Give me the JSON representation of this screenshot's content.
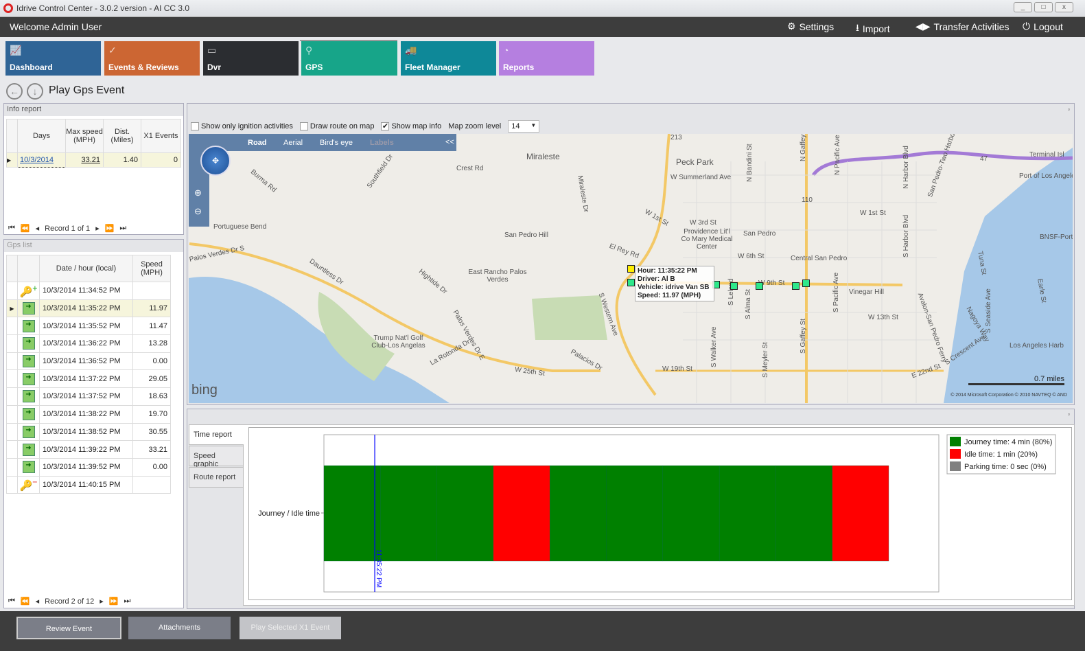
{
  "window": {
    "title": "Idrive Control Center - 3.0.2 version - AI CC 3.0",
    "min": "_",
    "max": "□",
    "close": "x"
  },
  "header": {
    "welcome": "Welcome Admin User",
    "settings": "Settings",
    "import": "Import",
    "transfer": "Transfer Activities",
    "logout": "Logout"
  },
  "tiles": [
    {
      "label": "Dashboard",
      "color": "#2f6496"
    },
    {
      "label": "Events & Reviews",
      "color": "#cc6633"
    },
    {
      "label": "Dvr",
      "color": "#2b2d31"
    },
    {
      "label": "GPS",
      "color": "#17a589"
    },
    {
      "label": "Fleet Manager",
      "color": "#0e8898"
    },
    {
      "label": "Reports",
      "color": "#b57fe0"
    }
  ],
  "page": {
    "title": "Play Gps Event"
  },
  "info_report": {
    "title": "Info report",
    "columns": [
      "Days",
      "Max speed (MPH)",
      "Dist. (Miles)",
      "X1 Events"
    ],
    "row": {
      "days": "10/3/2014",
      "max_speed": "33.21",
      "dist": "1.40",
      "x1": "0"
    },
    "record": "Record 1 of 1"
  },
  "gps_list": {
    "title": "Gps list",
    "columns": [
      "Date / hour (local)",
      "Speed (MPH)"
    ],
    "record": "Record 2 of 12",
    "selected_index": 1,
    "rows": [
      {
        "time": "10/3/2014 11:34:52 PM",
        "speed": "",
        "icon": "start-key"
      },
      {
        "time": "10/3/2014 11:35:22 PM",
        "speed": "11.97",
        "icon": "map"
      },
      {
        "time": "10/3/2014 11:35:52 PM",
        "speed": "11.47",
        "icon": "map"
      },
      {
        "time": "10/3/2014 11:36:22 PM",
        "speed": "13.28",
        "icon": "map"
      },
      {
        "time": "10/3/2014 11:36:52 PM",
        "speed": "0.00",
        "icon": "map"
      },
      {
        "time": "10/3/2014 11:37:22 PM",
        "speed": "29.05",
        "icon": "map"
      },
      {
        "time": "10/3/2014 11:37:52 PM",
        "speed": "18.63",
        "icon": "map"
      },
      {
        "time": "10/3/2014 11:38:22 PM",
        "speed": "19.70",
        "icon": "map"
      },
      {
        "time": "10/3/2014 11:38:52 PM",
        "speed": "30.55",
        "icon": "map"
      },
      {
        "time": "10/3/2014 11:39:22 PM",
        "speed": "33.21",
        "icon": "map"
      },
      {
        "time": "10/3/2014 11:39:52 PM",
        "speed": "0.00",
        "icon": "map"
      },
      {
        "time": "10/3/2014 11:40:15 PM",
        "speed": "",
        "icon": "end-key"
      }
    ]
  },
  "map_toolbar": {
    "ignition": "Show only ignition activities",
    "ignition_checked": false,
    "route": "Draw route on map",
    "route_checked": false,
    "info": "Show map info",
    "info_checked": true,
    "zoom_label": "Map zoom level",
    "zoom_value": "14"
  },
  "map": {
    "modes": [
      "Road",
      "Aerial",
      "Bird's eye",
      "Labels"
    ],
    "collapse": "<<",
    "brand": "bing",
    "scale": "0.7 miles",
    "copyright": "© 2014 Microsoft Corporation   © 2010 NAVTEQ   © AND",
    "labels": [
      "Miraleste",
      "Peck Park",
      "W Summerland Ave",
      "Crest Rd",
      "Burma Rd",
      "Southfield Dr",
      "Portuguese Bend",
      "Palos Verdes Dr S",
      "San Pedro Hill",
      "Dauntless Dr",
      "Hightide Dr",
      "East Rancho Palos Verdes",
      "W 1st St",
      "El Rey Rd",
      "W 3rd St",
      "Providence Lit'l Co Mary Medical Center",
      "W 6th St",
      "San Pedro",
      "Central San Pedro",
      "Vinegar Hill",
      "W 13th St",
      "Trump Nat'l Golf Club-Los Angelas",
      "W 25th St",
      "Palacios Dr",
      "W 19th St",
      "S Western Ave",
      "S Gaffey St",
      "N Gaffey Pl",
      "N Pacific Ave",
      "S Pacific Ave",
      "N Harbor Blvd",
      "S Harbor Blvd",
      "Port of Los Angeles",
      "BNSF-Port",
      "Terminal Isl",
      "Los Angeles Harb",
      "E 22nd St",
      "S Crescent Ave",
      "W 1st St",
      "La Rotonda Dr",
      "Palos Verdes Dr E",
      "Miraleste Dr",
      "N Bandini St",
      "Tuna St",
      "Earle St",
      "S Seaside Ave",
      "Nagoya Way",
      "Avalon-San Pedro Ferry",
      "San Pedro-Two Harbors",
      "S Leland",
      "S Alma St",
      "S Walker Ave",
      "S Meyler St",
      "W 9th St",
      "47",
      "110",
      "213"
    ],
    "tooltip": {
      "hour": "Hour: 11:35:22 PM",
      "driver": "Driver: Al B",
      "vehicle": "Vehicle: idrive Van SB",
      "speed": "Speed: 11.97 (MPH)"
    }
  },
  "report_tabs": [
    "Time report",
    "Speed graphic",
    "Route report"
  ],
  "chart_data": {
    "type": "bar",
    "orientation": "horizontal-timeline",
    "ylabel": "Journey / Idle time",
    "categories": [
      "Journey / Idle time"
    ],
    "segments": [
      "journey",
      "journey",
      "journey",
      "idle",
      "journey",
      "journey",
      "journey",
      "journey",
      "journey",
      "idle"
    ],
    "cursor_label": "11:35:22 PM",
    "cursor_segment_index": 1,
    "legend": [
      {
        "name": "Journey time: 4 min (80%)",
        "color": "#008000"
      },
      {
        "name": "Idle time: 1 min (20%)",
        "color": "#ff0000"
      },
      {
        "name": "Parking time: 0 sec (0%)",
        "color": "#808080"
      }
    ],
    "legend_position": "right"
  },
  "footer": {
    "review": "Review Event",
    "attachments": "Attachments",
    "play": "Play Selected X1 Event"
  }
}
